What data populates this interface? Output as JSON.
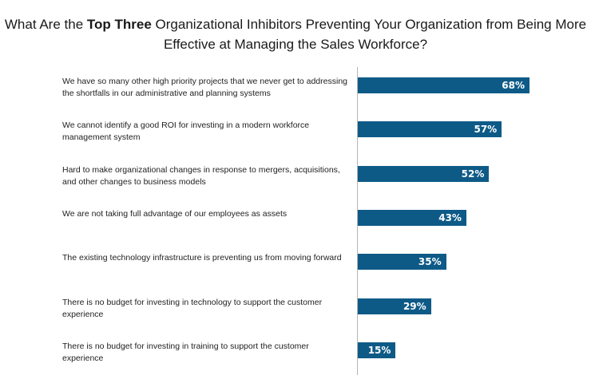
{
  "chart_data": {
    "type": "bar",
    "orientation": "horizontal",
    "title_parts": [
      "What Are the ",
      "Top Three",
      " Organizational Inhibitors Preventing Your Organization from Being More Effective at Managing the Sales Workforce?"
    ],
    "categories": [
      "We have so many other high priority projects that we never get to addressing the shortfalls in our administrative and planning systems",
      "We cannot identify a good ROI for investing in a modern workforce management system",
      "Hard to make organizational changes in response to mergers, acquisitions, and other changes to business models",
      "We are not taking full advantage of our employees as assets",
      "The existing technology infrastructure is preventing us from moving forward",
      "There is no budget for investing in technology to support the customer experience",
      "There is no budget for investing in training to support the customer experience"
    ],
    "values": [
      68,
      57,
      52,
      43,
      35,
      29,
      15
    ],
    "value_labels": [
      "68%",
      "57%",
      "52%",
      "43%",
      "35%",
      "29%",
      "15%"
    ],
    "bar_color": "#0e5a87",
    "grid": false
  }
}
